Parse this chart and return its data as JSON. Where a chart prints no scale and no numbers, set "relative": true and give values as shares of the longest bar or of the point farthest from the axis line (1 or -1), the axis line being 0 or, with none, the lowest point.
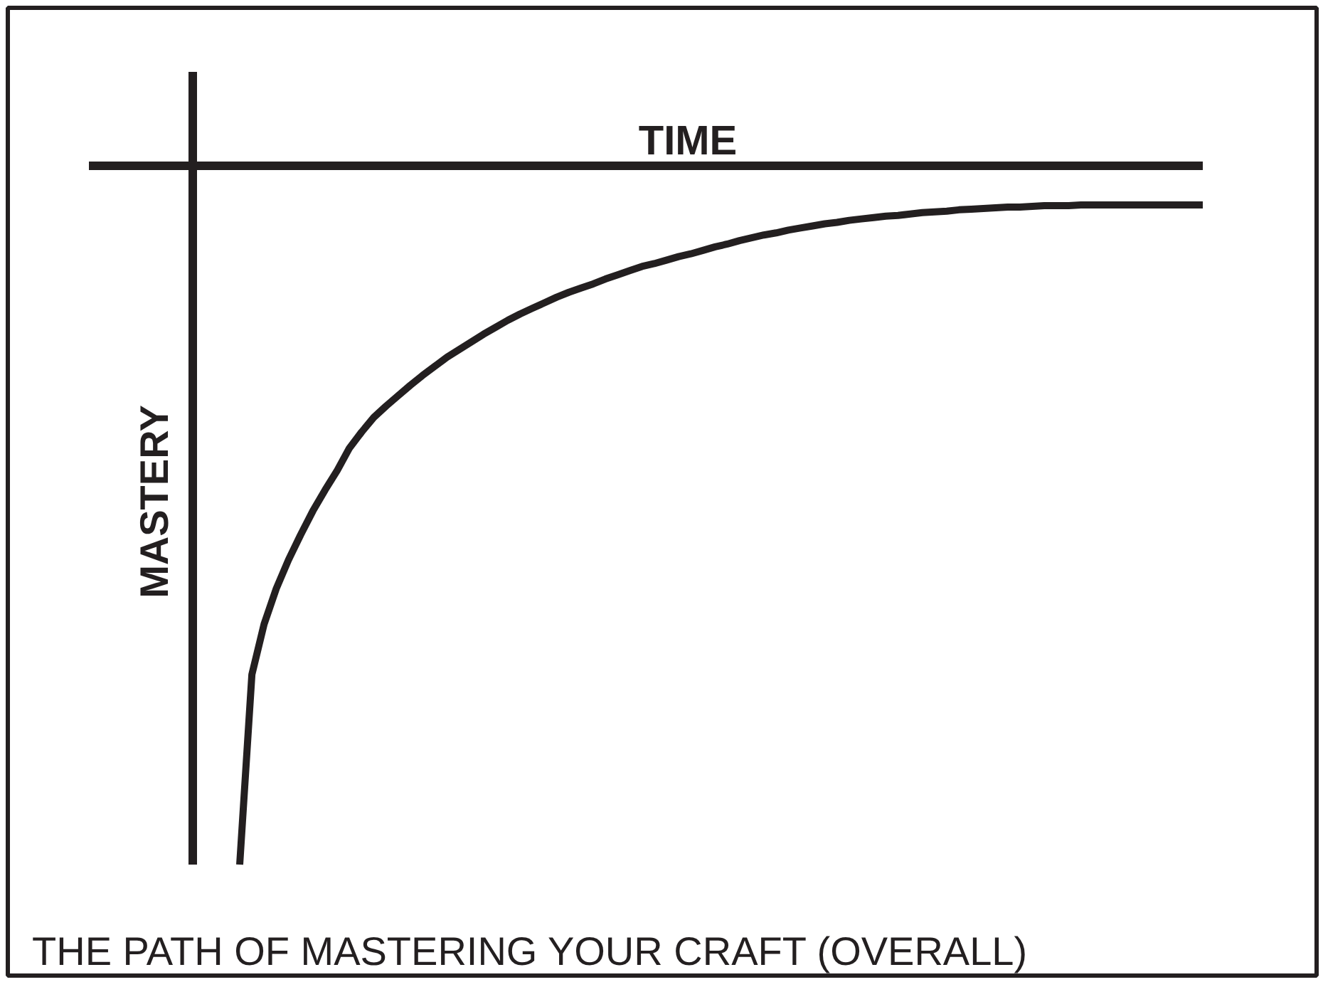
{
  "chart_data": {
    "type": "line",
    "title": "THE PATH OF MASTERING YOUR CRAFT (OVERALL)",
    "xlabel": "TIME",
    "ylabel": "MASTERY",
    "relative": true,
    "line_style": "solid",
    "categories": [
      null,
      null,
      null,
      null,
      null,
      null,
      null,
      null,
      null,
      null,
      null,
      null,
      null,
      null,
      null,
      null,
      null,
      null,
      null,
      null,
      null,
      null,
      null,
      null,
      null,
      null,
      null,
      null,
      null,
      null,
      null,
      null,
      null,
      null,
      null,
      null,
      null,
      null,
      null,
      null,
      null,
      null,
      null,
      null,
      null,
      null,
      null,
      null,
      null,
      null,
      null,
      null,
      null,
      null,
      null,
      null,
      null,
      null,
      null,
      null,
      null,
      null,
      null,
      null,
      null,
      null,
      null,
      null,
      null,
      null,
      null,
      null,
      null,
      null,
      null,
      null,
      null,
      null,
      null,
      null
    ],
    "series": [
      {
        "color": "#231f20",
        "values": [
          -1.0,
          -0.728,
          -0.656,
          -0.605,
          -0.564,
          -0.528,
          -0.494,
          -0.464,
          -0.436,
          -0.404,
          -0.381,
          -0.36,
          -0.344,
          -0.329,
          -0.314,
          -0.3,
          -0.287,
          -0.274,
          -0.263,
          -0.252,
          -0.241,
          -0.231,
          -0.221,
          -0.212,
          -0.204,
          -0.196,
          -0.188,
          -0.181,
          -0.175,
          -0.169,
          -0.162,
          -0.156,
          -0.15,
          -0.144,
          -0.14,
          -0.135,
          -0.13,
          -0.126,
          -0.121,
          -0.116,
          -0.112,
          -0.107,
          -0.103,
          -0.099,
          -0.096,
          -0.092,
          -0.089,
          -0.086,
          -0.083,
          -0.081,
          -0.078,
          -0.076,
          -0.074,
          -0.072,
          -0.071,
          -0.069,
          -0.067,
          -0.066,
          -0.065,
          -0.063,
          -0.062,
          -0.061,
          -0.06,
          -0.059,
          -0.059,
          -0.058,
          -0.057,
          -0.057,
          -0.057,
          -0.056,
          -0.056,
          -0.056,
          -0.056,
          -0.056,
          -0.056,
          -0.056,
          -0.056,
          -0.056,
          -0.056,
          -0.056
        ]
      }
    ]
  }
}
